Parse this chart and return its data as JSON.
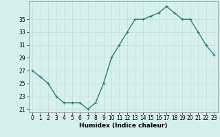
{
  "x": [
    0,
    1,
    2,
    3,
    4,
    5,
    6,
    7,
    8,
    9,
    10,
    11,
    12,
    13,
    14,
    15,
    16,
    17,
    18,
    19,
    20,
    21,
    22,
    23
  ],
  "y": [
    27,
    26,
    25,
    23,
    22,
    22,
    22,
    21,
    22,
    25,
    29,
    31,
    33,
    35,
    35,
    35.5,
    36,
    37,
    36,
    35,
    35,
    33,
    31,
    29.5
  ],
  "line_color": "#2e7d6e",
  "marker": "+",
  "marker_size": 3,
  "bg_color": "#d6f0f0",
  "xlabel": "Humidex (Indice chaleur)",
  "xlim": [
    -0.5,
    23.5
  ],
  "ylim": [
    20.5,
    37.8
  ],
  "yticks": [
    21,
    23,
    25,
    27,
    29,
    31,
    33,
    35
  ],
  "xticks": [
    0,
    1,
    2,
    3,
    4,
    5,
    6,
    7,
    8,
    9,
    10,
    11,
    12,
    13,
    14,
    15,
    16,
    17,
    18,
    19,
    20,
    21,
    22,
    23
  ],
  "label_fontsize": 6.5,
  "tick_fontsize": 5.5,
  "linewidth": 1.0,
  "grid_color": "#c8d8d8",
  "spine_color": "#888888"
}
